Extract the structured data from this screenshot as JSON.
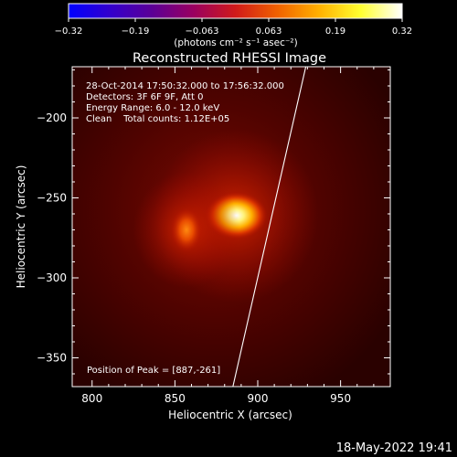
{
  "colorbar": {
    "tick_labels": [
      "-0.32",
      "-0.19",
      "-0.063",
      "0.063",
      "0.19",
      "0.32"
    ],
    "unit_label": "(photons cm⁻² s⁻¹ asec⁻²)",
    "colors": [
      "#0000ff",
      "#3300cc",
      "#5b0096",
      "#9a0060",
      "#d01a1a",
      "#f06000",
      "#ffb000",
      "#ffff30",
      "#ffffff"
    ]
  },
  "image": {
    "title": "Reconstructed RHESSI Image",
    "info_lines": [
      "28-Oct-2014 17:50:32.000 to 17:56:32.000",
      "Detectors: 3F 6F 9F, Att 0",
      "Energy Range: 6.0 - 12.0 keV",
      "Clean    Total counts: 1.12E+05"
    ],
    "peak_text": "Position of Peak = [887,-261]",
    "xlabel": "Heliocentric X (arcsec)",
    "ylabel": "Heliocentric Y (arcsec)",
    "x_ticks": [
      800,
      850,
      900,
      950
    ],
    "y_ticks": [
      -200,
      -250,
      -300,
      -350
    ],
    "xlim": [
      788,
      980
    ],
    "ylim": [
      -368,
      -168
    ],
    "sources": [
      {
        "x": 887,
        "y": -261,
        "level": 1.0
      },
      {
        "x": 857,
        "y": -270,
        "level": 0.55
      }
    ],
    "limb_points": [
      [
        929,
        -168
      ],
      [
        900,
        -300
      ],
      [
        885,
        -368
      ]
    ]
  },
  "timestamp": "18-May-2022 19:41"
}
